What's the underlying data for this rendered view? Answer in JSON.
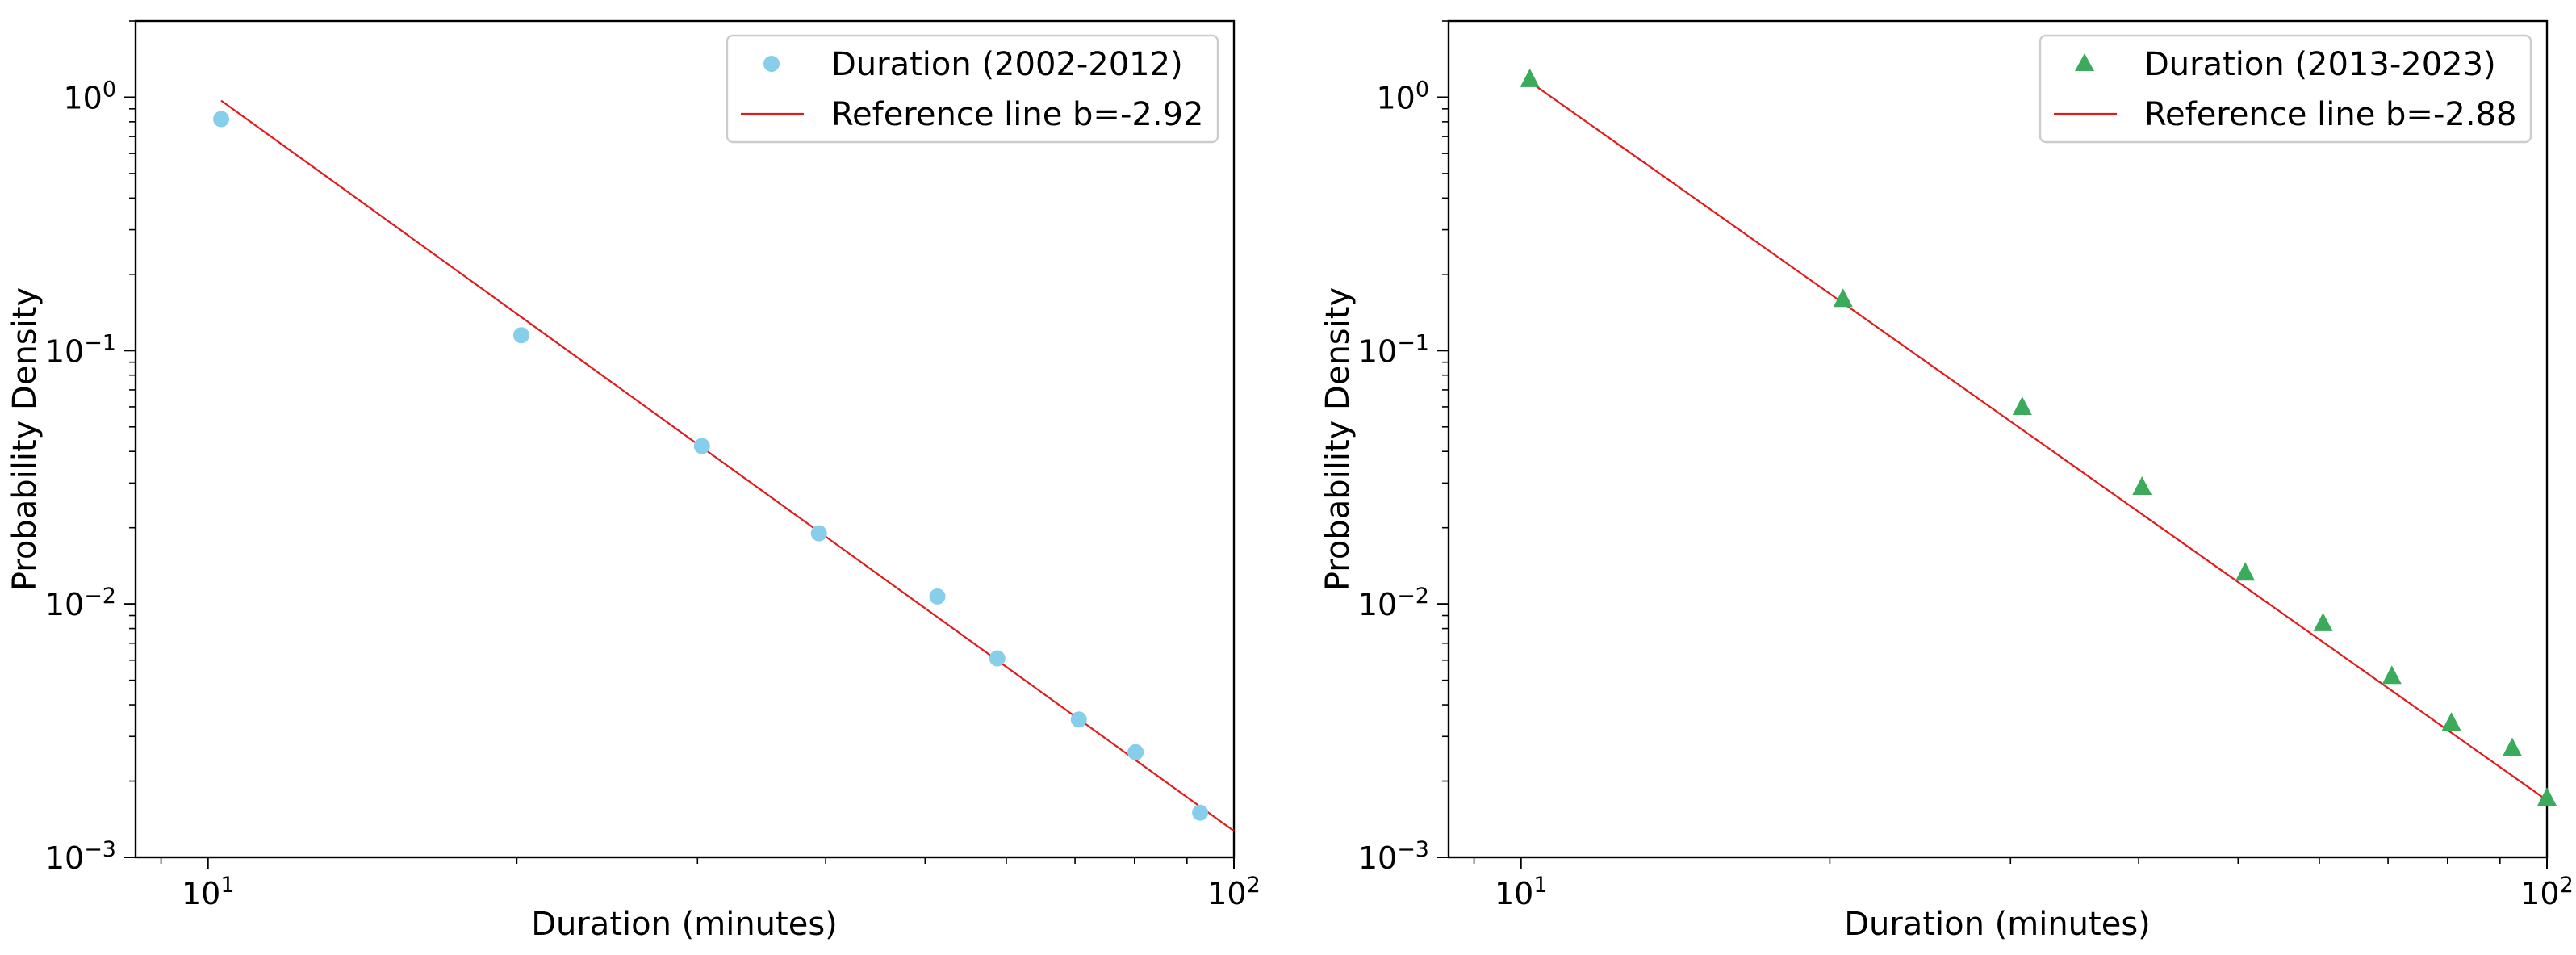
{
  "chart_data": [
    {
      "type": "scatter",
      "xscale": "log",
      "yscale": "log",
      "xlabel": "Duration (minutes)",
      "ylabel": "Probability Density",
      "xlim": [
        8.5,
        100
      ],
      "ylim": [
        0.001,
        2.0
      ],
      "x_ticks": [
        {
          "value": 10,
          "label": "10",
          "exp": "1"
        },
        {
          "value": 100,
          "label": "10",
          "exp": "2"
        }
      ],
      "y_ticks": [
        {
          "value": 1,
          "label": "10",
          "exp": "0"
        },
        {
          "value": 0.1,
          "label": "10",
          "exp": "−1"
        },
        {
          "value": 0.01,
          "label": "10",
          "exp": "−2"
        },
        {
          "value": 0.001,
          "label": "10",
          "exp": "−3"
        }
      ],
      "marker": "circle",
      "marker_color": "#87CEEB",
      "line_color": "#E31A1C",
      "legend_position": "top-right",
      "series": [
        {
          "name": "Duration (2002-2012)",
          "kind": "points",
          "x": [
            10.3,
            20.2,
            30.3,
            39.4,
            51.4,
            58.8,
            70.6,
            80.2,
            92.7
          ],
          "y": [
            0.82,
            0.115,
            0.042,
            0.019,
            0.0107,
            0.0061,
            0.0035,
            0.0026,
            0.0015
          ]
        },
        {
          "name": "Reference line b=-2.92",
          "kind": "line",
          "x": [
            10.3,
            100
          ],
          "y": [
            0.97,
            0.00127
          ]
        }
      ]
    },
    {
      "type": "scatter",
      "xscale": "log",
      "yscale": "log",
      "xlabel": "Duration (minutes)",
      "ylabel": "Probability Density",
      "xlim": [
        8.5,
        100
      ],
      "ylim": [
        0.001,
        2.0
      ],
      "x_ticks": [
        {
          "value": 10,
          "label": "10",
          "exp": "1"
        },
        {
          "value": 100,
          "label": "10",
          "exp": "2"
        }
      ],
      "y_ticks": [
        {
          "value": 1,
          "label": "10",
          "exp": "0"
        },
        {
          "value": 0.1,
          "label": "10",
          "exp": "−1"
        },
        {
          "value": 0.01,
          "label": "10",
          "exp": "−2"
        },
        {
          "value": 0.001,
          "label": "10",
          "exp": "−3"
        }
      ],
      "marker": "triangle",
      "marker_color": "#3CAA5B",
      "line_color": "#E31A1C",
      "legend_position": "top-right",
      "series": [
        {
          "name": "Duration (2013-2023)",
          "kind": "points",
          "x": [
            10.2,
            20.6,
            30.8,
            40.3,
            50.8,
            60.5,
            70.6,
            80.7,
            92.5,
            100
          ],
          "y": [
            1.18,
            0.16,
            0.06,
            0.029,
            0.0133,
            0.0084,
            0.0052,
            0.0034,
            0.0027,
            0.00172
          ]
        },
        {
          "name": "Reference line b=-2.88",
          "kind": "line",
          "x": [
            10.2,
            100
          ],
          "y": [
            1.15,
            0.00168
          ]
        }
      ]
    }
  ]
}
